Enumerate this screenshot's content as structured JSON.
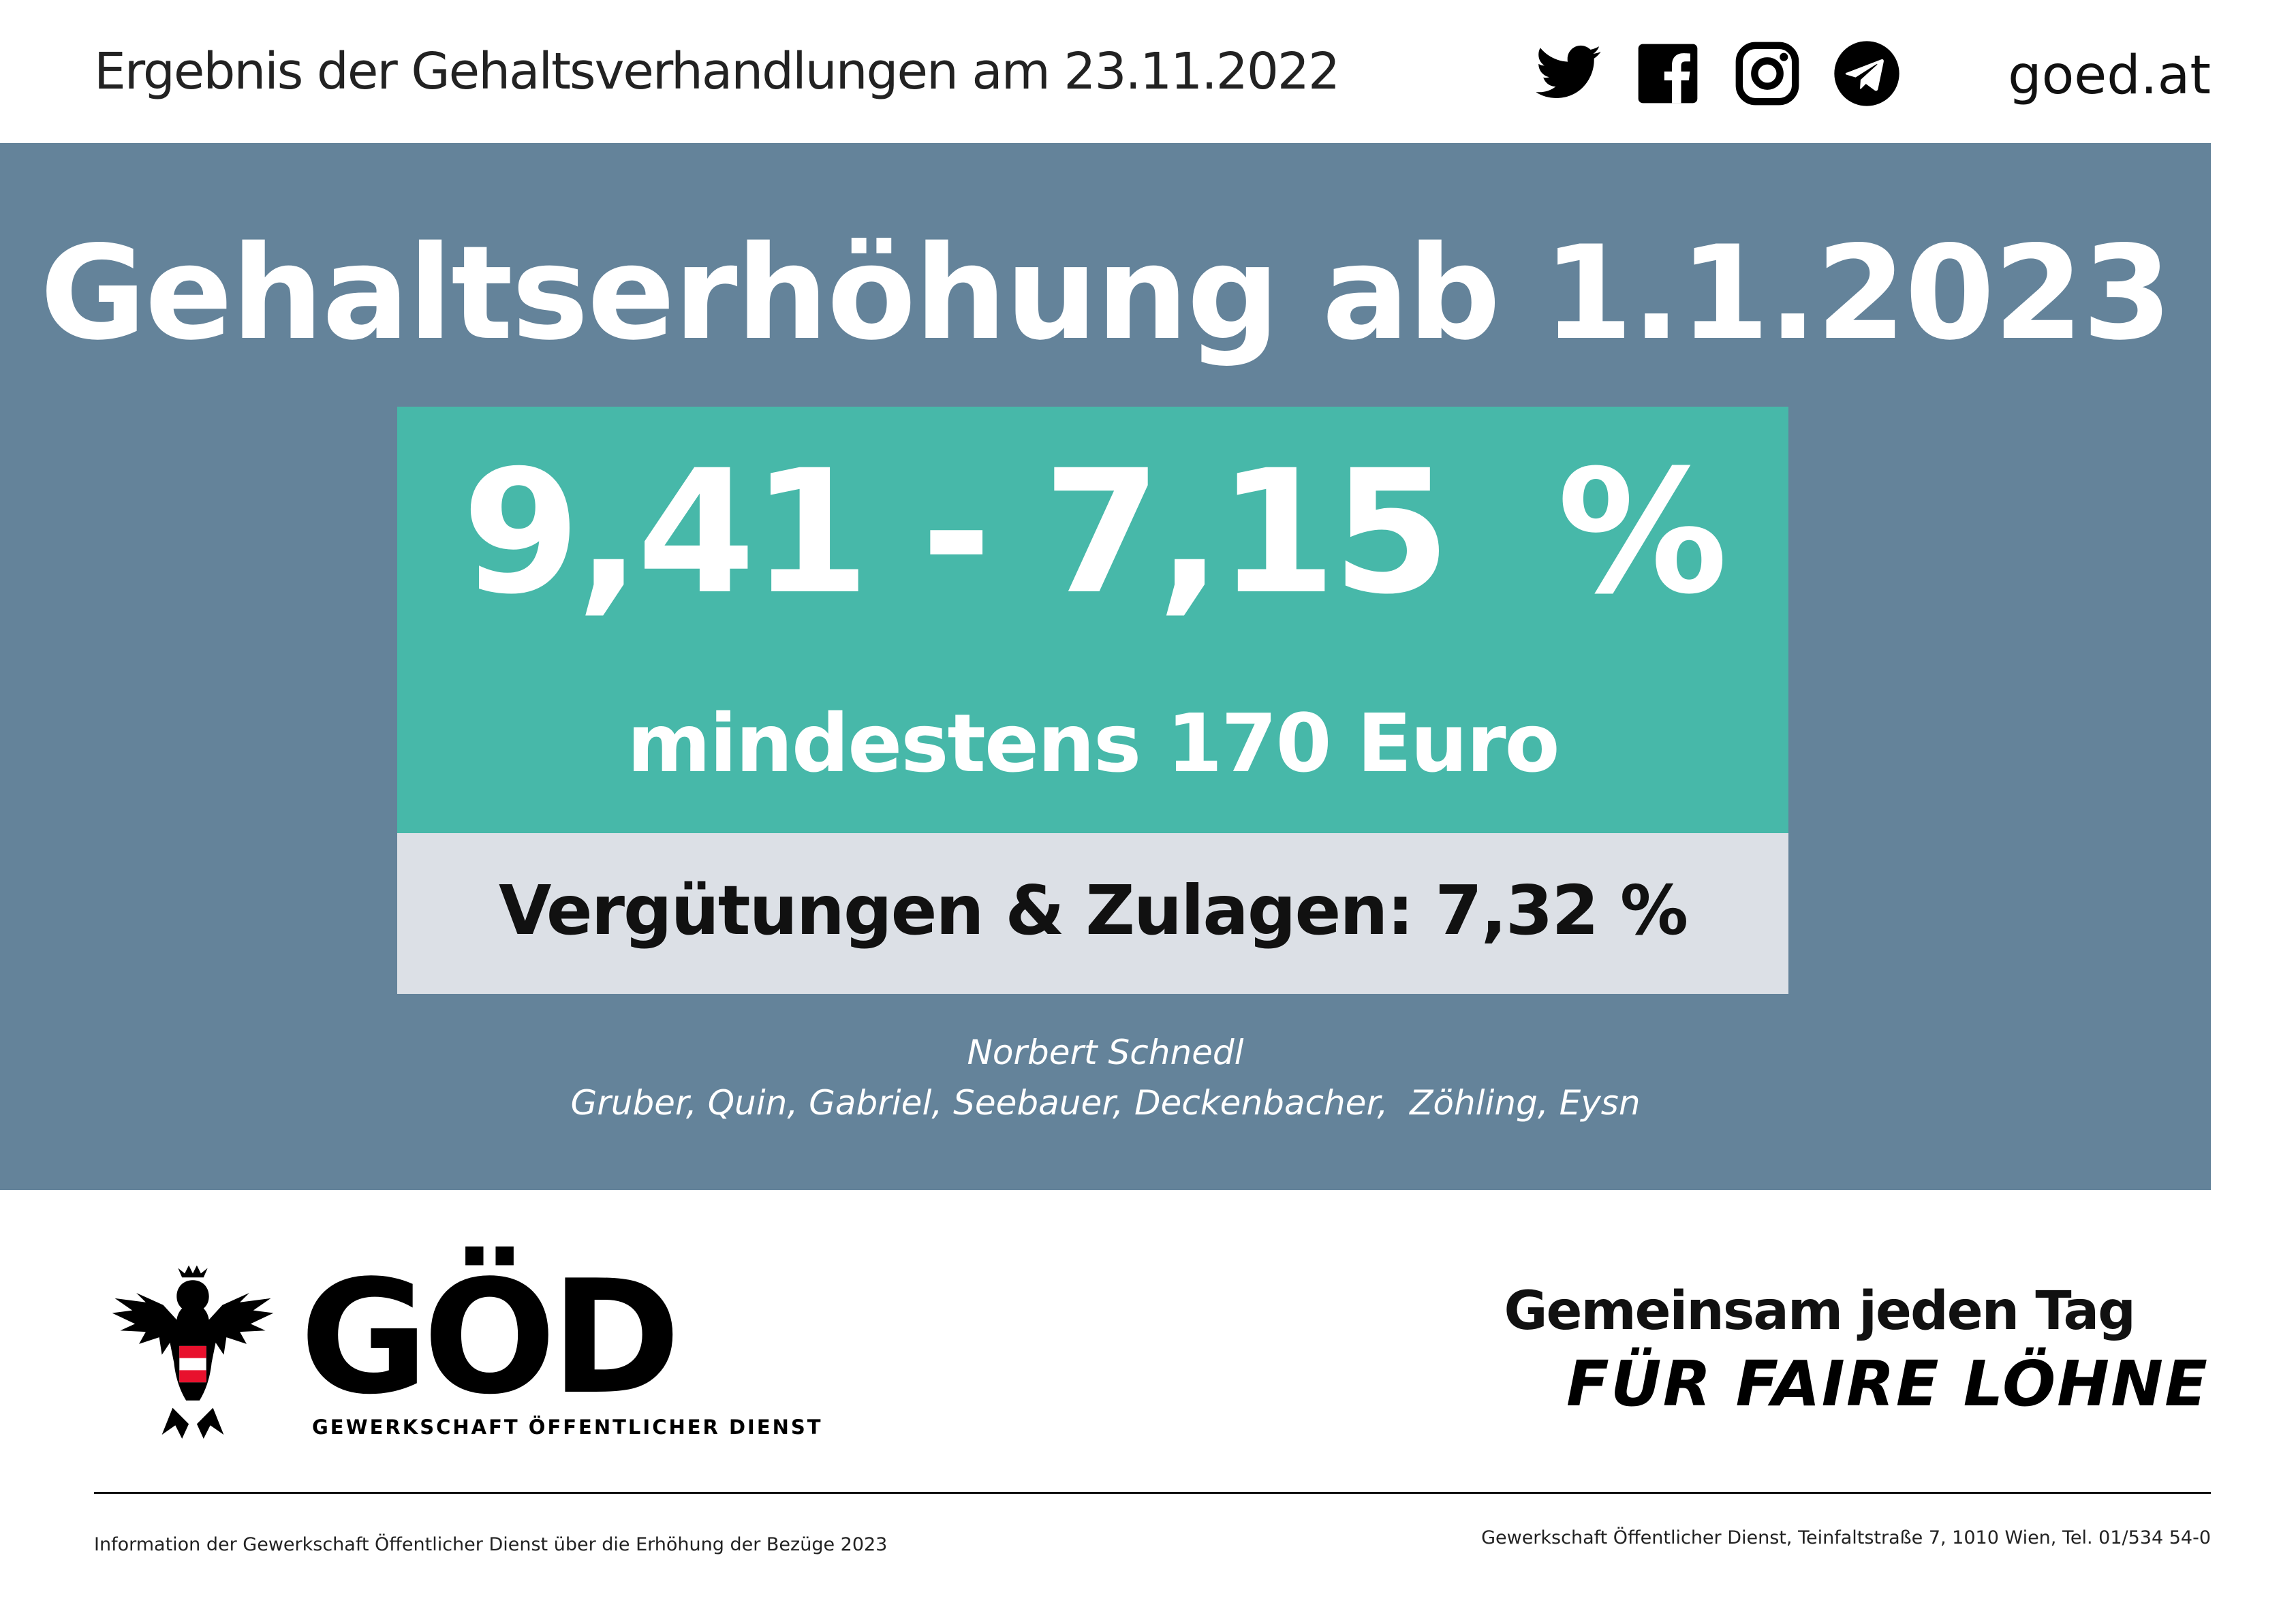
{
  "header": {
    "title": "Ergebnis der Gehaltsverhandlungen am 23.11.2022",
    "social_icons": [
      "twitter-icon",
      "facebook-icon",
      "instagram-icon",
      "telegram-icon"
    ],
    "site": "goed.at"
  },
  "panel": {
    "headline": "Gehaltserhöhung ab 1.1.2023",
    "range": "9,41 - 7,15  %",
    "minimum": "mindestens 170 Euro",
    "allowances": "Vergütungen & Zulagen: 7,32 %",
    "names_line1": "Norbert Schnedl",
    "names_line2": "Gruber, Quin, Gabriel, Seebauer, Deckenbacher,  Zöhling, Eysn"
  },
  "logo": {
    "wordmark": "GÖD",
    "subtitle": "GEWERKSCHAFT ÖFFENTLICHER DIENST"
  },
  "slogan": {
    "line1": "Gemeinsam jeden Tag",
    "line2": "FÜR FAIRE LÖHNE"
  },
  "footer": {
    "left": "Information der Gewerkschaft Öffentlicher Dienst über die Erhöhung der Bezüge 2023",
    "right": "Gewerkschaft Öffentlicher Dienst, Teinfaltstraße 7, 1010 Wien, Tel. 01/534 54-0"
  },
  "colors": {
    "panel": "#64839a",
    "accent_green": "#47b8a9",
    "grey_box": "#dce0e6",
    "austria_red": "#e8112d"
  }
}
